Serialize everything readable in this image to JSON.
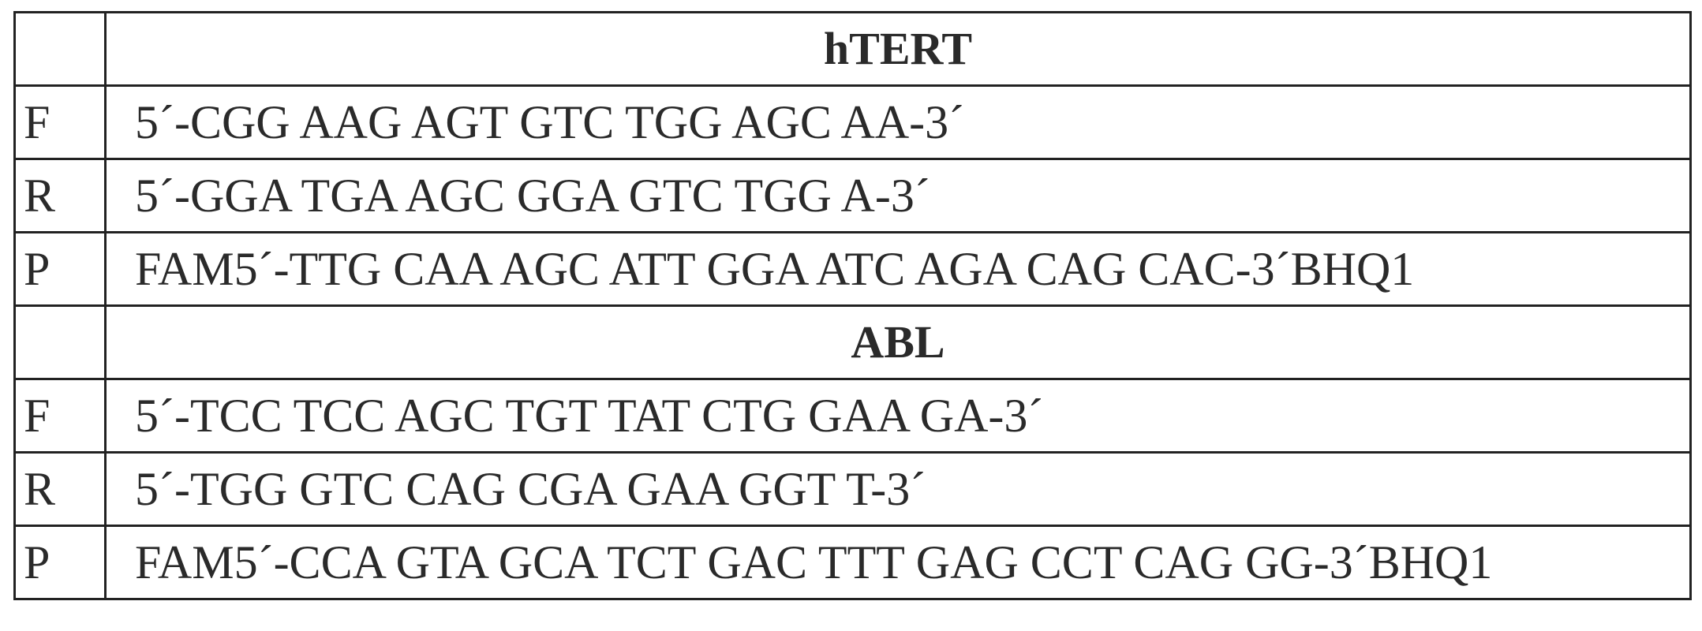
{
  "table": {
    "sections": [
      {
        "title": "hTERT",
        "rows": [
          [
            "F",
            "5´-CGG AAG AGT GTC TGG AGC AA-3´"
          ],
          [
            "R",
            "5´-GGA TGA AGC GGA GTC TGG A-3´"
          ],
          [
            "P",
            "FAM5´-TTG CAA AGC ATT GGA ATC AGA CAG CAC-3´BHQ1"
          ]
        ]
      },
      {
        "title": "ABL",
        "rows": [
          [
            "F",
            "5´-TCC TCC AGC TGT TAT CTG GAA GA-3´"
          ],
          [
            "R",
            "5´-TGG GTC CAG CGA GAA GGT T-3´"
          ],
          [
            "P",
            "FAM5´-CCA GTA GCA TCT GAC TTT GAG CCT CAG GG-3´BHQ1"
          ]
        ]
      }
    ]
  }
}
